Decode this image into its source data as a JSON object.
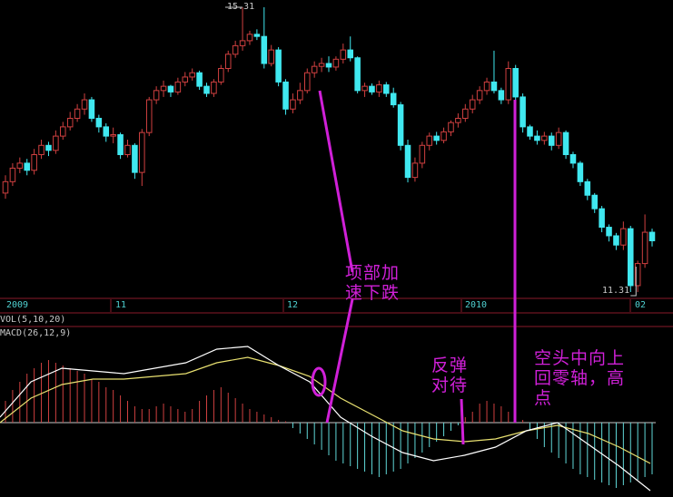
{
  "chart_data": {
    "type": "candlestick",
    "price_panel": {
      "max_label": "15.31",
      "min_label": "11.31",
      "ylim": [
        11.31,
        15.31
      ],
      "up_color": "#d04040",
      "down_color": "#40e8f0",
      "candles": [
        [
          12.7,
          12.95,
          12.62,
          12.86
        ],
        [
          12.86,
          13.12,
          12.8,
          13.05
        ],
        [
          13.05,
          13.2,
          12.98,
          13.12
        ],
        [
          13.12,
          13.18,
          12.95,
          13.02
        ],
        [
          13.02,
          13.32,
          12.96,
          13.24
        ],
        [
          13.24,
          13.45,
          13.18,
          13.37
        ],
        [
          13.37,
          13.42,
          13.22,
          13.3
        ],
        [
          13.3,
          13.58,
          13.25,
          13.5
        ],
        [
          13.5,
          13.7,
          13.45,
          13.63
        ],
        [
          13.63,
          13.84,
          13.58,
          13.75
        ],
        [
          13.75,
          13.95,
          13.7,
          13.88
        ],
        [
          13.88,
          14.1,
          13.8,
          14.01
        ],
        [
          14.01,
          14.05,
          13.7,
          13.75
        ],
        [
          13.75,
          13.8,
          13.55,
          13.63
        ],
        [
          13.63,
          13.68,
          13.42,
          13.5
        ],
        [
          13.5,
          13.62,
          13.4,
          13.52
        ],
        [
          13.52,
          13.55,
          13.18,
          13.24
        ],
        [
          13.24,
          13.45,
          13.2,
          13.37
        ],
        [
          13.37,
          13.4,
          12.9,
          12.99
        ],
        [
          12.99,
          13.6,
          12.8,
          13.55
        ],
        [
          13.55,
          14.05,
          13.5,
          14.01
        ],
        [
          14.01,
          14.2,
          13.95,
          14.14
        ],
        [
          14.14,
          14.28,
          14.05,
          14.2
        ],
        [
          14.2,
          14.22,
          14.05,
          14.12
        ],
        [
          14.12,
          14.32,
          14.08,
          14.26
        ],
        [
          14.26,
          14.4,
          14.2,
          14.33
        ],
        [
          14.33,
          14.45,
          14.28,
          14.39
        ],
        [
          14.39,
          14.42,
          14.15,
          14.2
        ],
        [
          14.2,
          14.25,
          14.05,
          14.1
        ],
        [
          14.1,
          14.3,
          14.05,
          14.26
        ],
        [
          14.26,
          14.5,
          14.22,
          14.45
        ],
        [
          14.45,
          14.7,
          14.4,
          14.65
        ],
        [
          14.65,
          14.84,
          14.6,
          14.77
        ],
        [
          14.77,
          15.31,
          14.7,
          14.84
        ],
        [
          14.84,
          14.98,
          14.78,
          14.93
        ],
        [
          14.93,
          15.0,
          14.85,
          14.9
        ],
        [
          14.9,
          15.31,
          14.45,
          14.52
        ],
        [
          14.52,
          14.78,
          14.48,
          14.71
        ],
        [
          14.71,
          14.75,
          14.2,
          14.26
        ],
        [
          14.26,
          14.3,
          13.8,
          13.88
        ],
        [
          13.88,
          14.1,
          13.82,
          14.01
        ],
        [
          14.01,
          14.25,
          13.95,
          14.14
        ],
        [
          14.14,
          14.45,
          14.1,
          14.39
        ],
        [
          14.39,
          14.55,
          14.32,
          14.48
        ],
        [
          14.48,
          14.6,
          14.4,
          14.52
        ],
        [
          14.52,
          14.62,
          14.4,
          14.47
        ],
        [
          14.47,
          14.62,
          14.42,
          14.58
        ],
        [
          14.58,
          14.8,
          14.52,
          14.71
        ],
        [
          14.71,
          14.9,
          14.55,
          14.6
        ],
        [
          14.6,
          14.62,
          14.1,
          14.14
        ],
        [
          14.14,
          14.25,
          14.05,
          14.2
        ],
        [
          14.2,
          14.24,
          14.08,
          14.12
        ],
        [
          14.12,
          14.28,
          14.05,
          14.22
        ],
        [
          14.22,
          14.26,
          14.05,
          14.1
        ],
        [
          14.1,
          14.18,
          13.9,
          13.94
        ],
        [
          13.94,
          13.98,
          13.3,
          13.37
        ],
        [
          13.37,
          13.45,
          12.85,
          12.92
        ],
        [
          12.92,
          13.2,
          12.86,
          13.12
        ],
        [
          13.12,
          13.42,
          13.05,
          13.37
        ],
        [
          13.37,
          13.55,
          13.3,
          13.5
        ],
        [
          13.5,
          13.56,
          13.38,
          13.44
        ],
        [
          13.44,
          13.62,
          13.4,
          13.56
        ],
        [
          13.56,
          13.72,
          13.5,
          13.69
        ],
        [
          13.69,
          13.82,
          13.62,
          13.75
        ],
        [
          13.75,
          13.95,
          13.7,
          13.88
        ],
        [
          13.88,
          14.08,
          13.82,
          14.01
        ],
        [
          14.01,
          14.2,
          13.95,
          14.14
        ],
        [
          14.14,
          14.32,
          14.08,
          14.26
        ],
        [
          14.26,
          14.7,
          14.1,
          14.14
        ],
        [
          14.14,
          14.18,
          13.95,
          14.01
        ],
        [
          14.01,
          14.55,
          13.95,
          14.45
        ],
        [
          14.45,
          14.5,
          14.0,
          14.05
        ],
        [
          14.05,
          14.1,
          13.55,
          13.63
        ],
        [
          13.63,
          13.66,
          13.45,
          13.5
        ],
        [
          13.5,
          13.58,
          13.38,
          13.44
        ],
        [
          13.44,
          13.56,
          13.38,
          13.5
        ],
        [
          13.5,
          13.55,
          13.3,
          13.37
        ],
        [
          13.37,
          13.62,
          13.32,
          13.55
        ],
        [
          13.55,
          13.58,
          13.18,
          13.24
        ],
        [
          13.24,
          13.28,
          13.05,
          13.12
        ],
        [
          13.12,
          13.15,
          12.8,
          12.86
        ],
        [
          12.86,
          12.9,
          12.6,
          12.67
        ],
        [
          12.67,
          12.7,
          12.42,
          12.48
        ],
        [
          12.48,
          12.52,
          12.15,
          12.22
        ],
        [
          12.22,
          12.26,
          12.02,
          12.1
        ],
        [
          12.1,
          12.14,
          11.9,
          11.97
        ],
        [
          11.97,
          12.3,
          11.9,
          12.2
        ],
        [
          12.2,
          12.24,
          11.31,
          11.4
        ],
        [
          11.4,
          11.75,
          11.31,
          11.71
        ],
        [
          11.71,
          12.4,
          11.65,
          12.15
        ],
        [
          12.15,
          12.2,
          11.95,
          12.03
        ]
      ]
    },
    "x_ticks": [
      "2009",
      "11",
      "12",
      "2010",
      "02"
    ],
    "vol_label": "VOL(5,10,20)",
    "macd_panel": {
      "label": "MACD(26,12,9)",
      "ylim": [
        -0.3,
        0.3
      ],
      "histogram": [
        0.08,
        0.12,
        0.15,
        0.18,
        0.2,
        0.22,
        0.23,
        0.22,
        0.21,
        0.2,
        0.19,
        0.18,
        0.16,
        0.15,
        0.13,
        0.12,
        0.1,
        0.08,
        0.06,
        0.05,
        0.05,
        0.06,
        0.07,
        0.06,
        0.05,
        0.04,
        0.05,
        0.08,
        0.1,
        0.12,
        0.13,
        0.11,
        0.09,
        0.07,
        0.05,
        0.04,
        0.03,
        0.02,
        0.01,
        0.005,
        -0.02,
        -0.04,
        -0.06,
        -0.08,
        -0.1,
        -0.12,
        -0.14,
        -0.15,
        -0.16,
        -0.17,
        -0.18,
        -0.19,
        -0.2,
        -0.19,
        -0.18,
        -0.17,
        -0.15,
        -0.13,
        -0.11,
        -0.09,
        -0.07,
        -0.05,
        -0.03,
        -0.01,
        0.02,
        0.04,
        0.07,
        0.08,
        0.07,
        0.06,
        0.04,
        0.03,
        0.01,
        -0.03,
        -0.06,
        -0.09,
        -0.11,
        -0.13,
        -0.15,
        -0.17,
        -0.19,
        -0.2,
        -0.21,
        -0.22,
        -0.23,
        -0.24,
        -0.23,
        -0.22,
        -0.21,
        -0.2,
        -0.19
      ],
      "dif": [
        0.02,
        0.15,
        0.2,
        0.19,
        0.18,
        0.2,
        0.22,
        0.27,
        0.28,
        0.21,
        0.15,
        0.02,
        -0.05,
        -0.11,
        -0.14,
        -0.12,
        -0.09,
        -0.03,
        0.0,
        -0.08,
        -0.16,
        -0.25
      ],
      "dea": [
        0.0,
        0.09,
        0.14,
        0.16,
        0.16,
        0.17,
        0.18,
        0.22,
        0.24,
        0.21,
        0.17,
        0.09,
        0.03,
        -0.03,
        -0.06,
        -0.07,
        -0.06,
        -0.03,
        -0.01,
        -0.04,
        -0.09,
        -0.15
      ],
      "dif_color": "#ffffff",
      "dea_color": "#e8e070",
      "pos_color": "#d04040",
      "neg_color": "#60d8d8"
    },
    "annotations": [
      {
        "text_line1": "项部加",
        "text_line2": "速下跌"
      },
      {
        "text_line1": "反弹",
        "text_line2": "对待"
      },
      {
        "text_line1": "空头中向上",
        "text_line2": "回零轴，高",
        "text_line3": "点"
      }
    ],
    "annotation_color": "#d020d8"
  }
}
